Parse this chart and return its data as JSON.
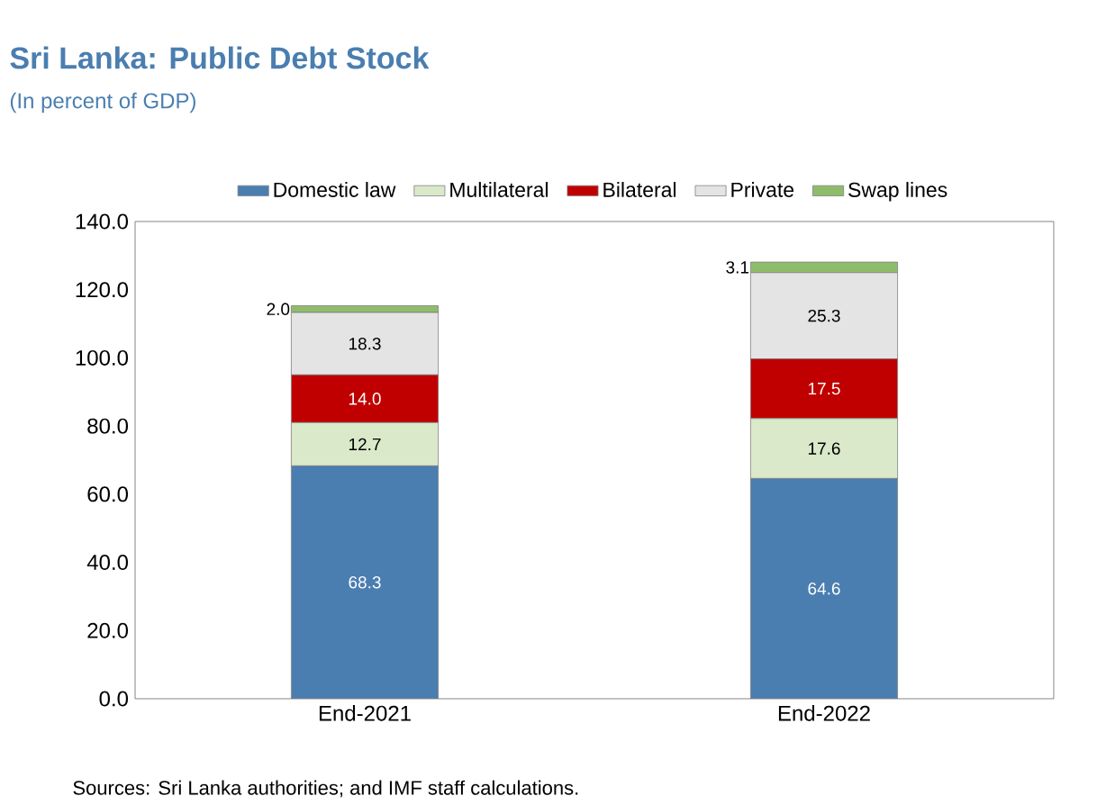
{
  "chart_data": {
    "type": "bar",
    "stacked": true,
    "title": "Sri Lanka: Public Debt Stock",
    "subtitle": "(In percent of GDP)",
    "categories": [
      "End-2021",
      "End-2022"
    ],
    "series": [
      {
        "name": "Domestic law",
        "color": "#4a7eb0",
        "values": [
          68.3,
          64.6
        ],
        "value_labels": [
          "68.3",
          "64.6"
        ]
      },
      {
        "name": "Multilateral",
        "color": "#d9e9c9",
        "values": [
          12.7,
          17.6
        ],
        "value_labels": [
          "12.7",
          "17.6"
        ]
      },
      {
        "name": "Bilateral",
        "color": "#c00000",
        "values": [
          14.0,
          17.5
        ],
        "value_labels": [
          "14.0",
          "17.5"
        ]
      },
      {
        "name": "Private",
        "color": "#e4e4e4",
        "values": [
          18.3,
          25.3
        ],
        "value_labels": [
          "18.3",
          "25.3"
        ]
      },
      {
        "name": "Swap lines",
        "color": "#8fbc6a",
        "values": [
          2.0,
          3.1
        ],
        "value_labels": [
          "2.0",
          "3.1"
        ]
      }
    ],
    "ylim": [
      0,
      140
    ],
    "yticks": [
      {
        "value": 0,
        "label": "0.0"
      },
      {
        "value": 20,
        "label": "20.0"
      },
      {
        "value": 40,
        "label": "40.0"
      },
      {
        "value": 60,
        "label": "60.0"
      },
      {
        "value": 80,
        "label": "80.0"
      },
      {
        "value": 100,
        "label": "100.0"
      },
      {
        "value": 120,
        "label": "120.0"
      },
      {
        "value": 140,
        "label": "140.0"
      }
    ],
    "grid": false,
    "legend": "top",
    "annotations": [
      "Sources: Sri Lanka authorities; and IMF staff calculations."
    ]
  }
}
